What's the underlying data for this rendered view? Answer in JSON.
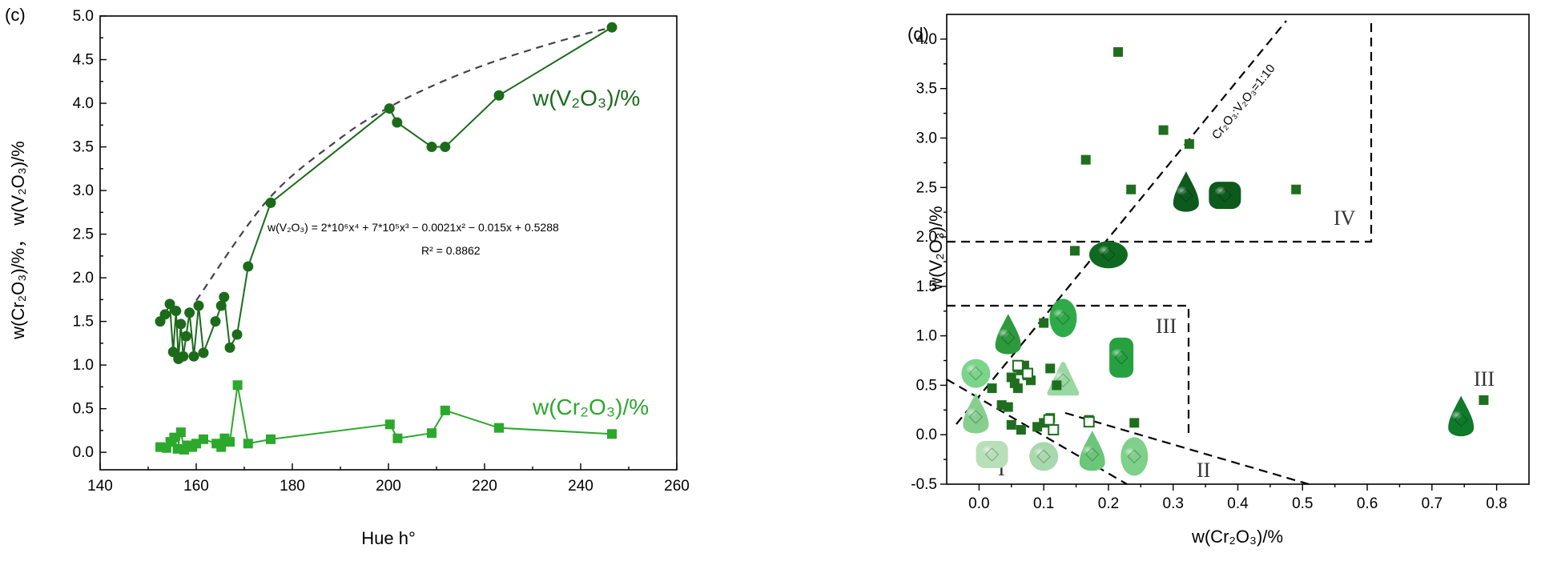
{
  "chart_data": [
    {
      "type": "line",
      "panel_label": "(c)",
      "xlabel": "Hue h°",
      "ylabel": "w(Cr₂O₃)/%， w(V₂O₃)/%",
      "xlim": [
        140,
        260
      ],
      "ylim": [
        -0.2,
        5.0
      ],
      "xticks": [
        "140",
        "160",
        "180",
        "200",
        "220",
        "240",
        "260"
      ],
      "yticks": [
        "0.0",
        "0.5",
        "1.0",
        "1.5",
        "2.0",
        "2.5",
        "3.0",
        "3.5",
        "4.0",
        "4.5",
        "5.0"
      ],
      "series": [
        {
          "name": "w(V₂O₃)/%",
          "marker": "circle",
          "color": "#1b6b1b",
          "x": [
            152.5,
            153.5,
            154.5,
            155.2,
            155.8,
            156.3,
            156.8,
            157.3,
            157.9,
            158.6,
            159.5,
            160.5,
            161.5,
            164.0,
            165.2,
            165.8,
            167.0,
            168.5,
            170.8,
            175.5,
            200.2,
            201.8,
            209.0,
            211.8,
            223.0,
            246.5
          ],
          "y": [
            1.5,
            1.58,
            1.7,
            1.15,
            1.62,
            1.07,
            1.47,
            1.1,
            1.33,
            1.6,
            1.1,
            1.68,
            1.14,
            1.5,
            1.68,
            1.78,
            1.2,
            1.35,
            2.13,
            2.86,
            3.94,
            3.78,
            3.5,
            3.5,
            4.09,
            4.87
          ]
        },
        {
          "name": "w(Cr₂O₃)/%",
          "marker": "square",
          "color": "#2ca82c",
          "x": [
            152.5,
            153.8,
            154.6,
            155.4,
            156.1,
            156.8,
            157.5,
            158.3,
            159.2,
            160.0,
            161.5,
            164.2,
            165.2,
            165.9,
            167.0,
            168.6,
            170.8,
            175.5,
            200.3,
            201.9,
            209.0,
            211.8,
            223.0,
            246.5
          ],
          "y": [
            0.06,
            0.05,
            0.12,
            0.17,
            0.04,
            0.23,
            0.03,
            0.08,
            0.06,
            0.1,
            0.15,
            0.1,
            0.06,
            0.16,
            0.12,
            0.77,
            0.1,
            0.15,
            0.32,
            0.16,
            0.22,
            0.48,
            0.28,
            0.21
          ]
        }
      ],
      "series_labels": [
        "w(V₂O₃)/%",
        "w(Cr₂O₃)/%"
      ],
      "fit": {
        "equation": "w(V₂O₃) = 2*10⁶x⁴ + 7*10⁵x³ − 0.0021x² − 0.015x + 0.5288",
        "r2": "R² = 0.8862",
        "x": [
          160,
          175,
          190,
          200,
          210,
          220,
          230,
          240,
          246.5
        ],
        "y": [
          1.74,
          2.9,
          3.6,
          3.95,
          4.22,
          4.44,
          4.62,
          4.78,
          4.87
        ]
      }
    },
    {
      "type": "scatter",
      "panel_label": "(d)",
      "xlabel": "w(Cr₂O₃)/%",
      "ylabel": "w(V₂O₃)/%",
      "xlim": [
        -0.05,
        0.85
      ],
      "ylim": [
        -0.5,
        4.25
      ],
      "xticks": [
        "0.0",
        "0.1",
        "0.2",
        "0.3",
        "0.4",
        "0.5",
        "0.6",
        "0.7",
        "0.8"
      ],
      "yticks": [
        "-0.5",
        "0.0",
        "0.5",
        "1.0",
        "1.5",
        "2.0",
        "2.5",
        "3.0",
        "3.5",
        "4.0"
      ],
      "ratio_line_label": "Cr₂O₃:V₂O₃=1:10",
      "region_labels": [
        "I",
        "II",
        "III",
        "IV",
        "III"
      ],
      "points": {
        "filled": {
          "color": "#1f6e1f",
          "x": [
            0.215,
            0.285,
            0.325,
            0.165,
            0.235,
            0.49,
            0.148,
            0.1,
            0.05,
            0.06,
            0.065,
            0.07,
            0.075,
            0.08,
            0.045,
            0.055,
            0.06,
            0.11,
            0.12,
            0.11,
            0.1,
            0.09,
            0.17,
            0.24,
            0.78,
            0.02,
            0.035,
            0.05,
            0.065
          ],
          "y": [
            3.87,
            3.08,
            2.94,
            2.78,
            2.48,
            2.48,
            1.86,
            1.13,
            0.58,
            0.68,
            0.65,
            0.7,
            0.6,
            0.55,
            0.28,
            0.52,
            0.47,
            0.67,
            0.5,
            0.17,
            0.12,
            0.08,
            0.15,
            0.12,
            0.35,
            0.47,
            0.3,
            0.1,
            0.05
          ]
        },
        "hollow": {
          "color": "#1f6e1f",
          "x": [
            0.06,
            0.075,
            0.108,
            0.115,
            0.17
          ],
          "y": [
            0.7,
            0.62,
            0.15,
            0.05,
            0.13
          ]
        }
      },
      "gems": [
        {
          "shape": "pear",
          "cr": 0.32,
          "v": 2.42,
          "color": "#0d5a1c"
        },
        {
          "shape": "cushion",
          "cr": 0.38,
          "v": 2.42,
          "color": "#0d5a1c"
        },
        {
          "shape": "oval",
          "cr": 0.2,
          "v": 1.82,
          "color": "#0f6a20"
        },
        {
          "shape": "oval-tall",
          "cr": 0.13,
          "v": 1.18,
          "color": "#2faa4a"
        },
        {
          "shape": "cushion-tall",
          "cr": 0.22,
          "v": 0.78,
          "color": "#27a040"
        },
        {
          "shape": "pear",
          "cr": 0.045,
          "v": 0.98,
          "color": "#2c9a3c"
        },
        {
          "shape": "round",
          "cr": -0.005,
          "v": 0.62,
          "color": "#7cd48a"
        },
        {
          "shape": "trillion",
          "cr": 0.13,
          "v": 0.55,
          "color": "#9ad8a2"
        },
        {
          "shape": "pear",
          "cr": -0.005,
          "v": 0.18,
          "color": "#86cf8e"
        },
        {
          "shape": "cushion",
          "cr": 0.02,
          "v": -0.2,
          "color": "#b8e0b8"
        },
        {
          "shape": "round",
          "cr": 0.1,
          "v": -0.22,
          "color": "#a8d8ac"
        },
        {
          "shape": "pear",
          "cr": 0.175,
          "v": -0.2,
          "color": "#6cc67a"
        },
        {
          "shape": "oval-tall",
          "cr": 0.24,
          "v": -0.22,
          "color": "#7ed08a"
        },
        {
          "shape": "pear",
          "cr": 0.745,
          "v": 0.15,
          "color": "#0f7a2a"
        }
      ]
    }
  ]
}
